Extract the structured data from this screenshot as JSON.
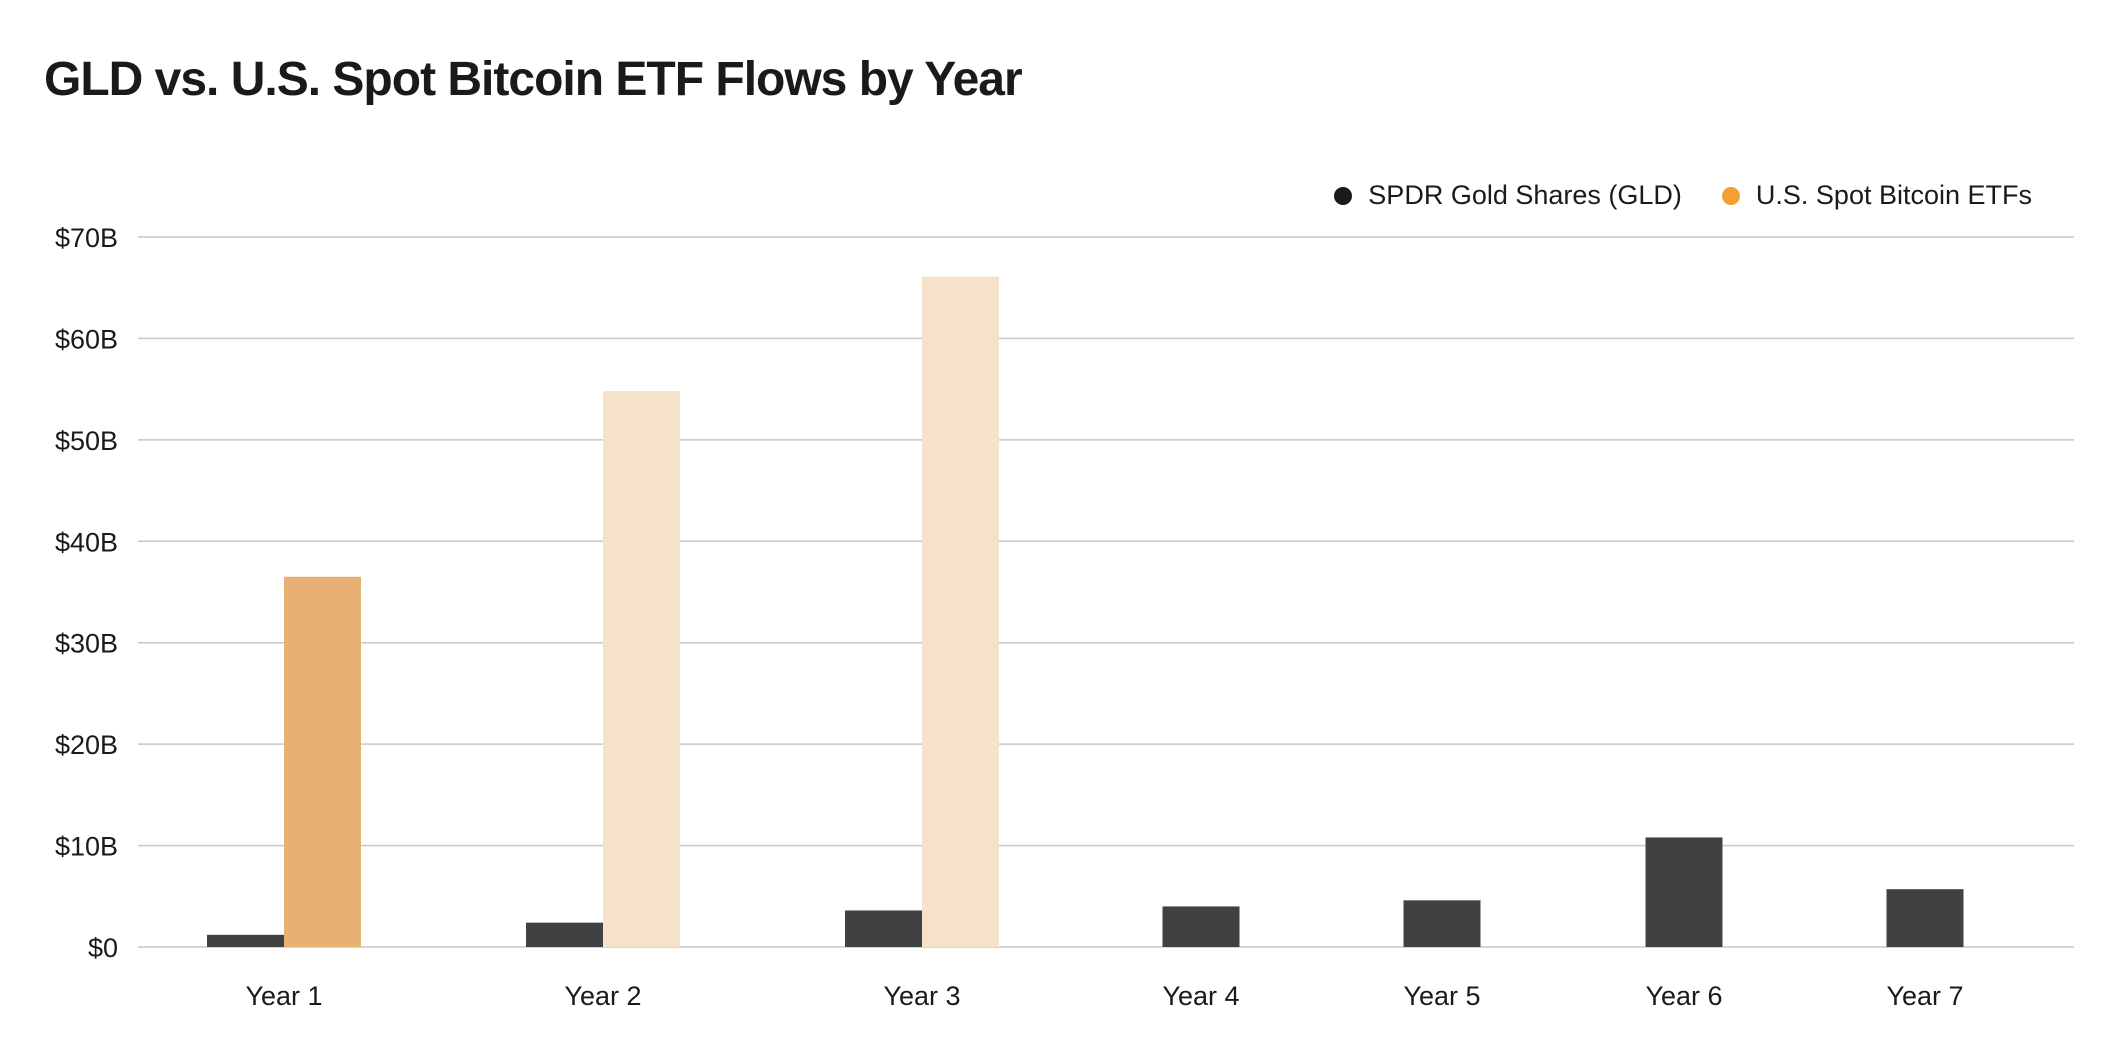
{
  "chart_data": {
    "type": "bar",
    "title": "GLD vs. U.S. Spot Bitcoin ETF Flows by Year",
    "categories": [
      "Year 1",
      "Year 2",
      "Year 3",
      "Year 4",
      "Year 5",
      "Year 6",
      "Year 7"
    ],
    "series": [
      {
        "name": "SPDR Gold Shares (GLD)",
        "values": [
          1.2,
          2.4,
          3.6,
          4.0,
          4.6,
          10.8,
          5.7
        ],
        "color": "#3f4142",
        "dot_color": "#1a1a1a"
      },
      {
        "name": "U.S. Spot Bitcoin ETFs",
        "values": [
          36.5,
          54.8,
          66.1,
          null,
          null,
          null,
          null
        ],
        "color": "#e6b173",
        "dot_color": "#f2a033",
        "highlight_colors": [
          "#e6b173",
          "#f6e2ca",
          "#f6e2ca"
        ]
      }
    ],
    "yticks": [
      "$0",
      "$10B",
      "$20B",
      "$30B",
      "$40B",
      "$50B",
      "$60B",
      "$70B"
    ],
    "ylim": [
      0,
      70
    ],
    "xlabel": "",
    "ylabel": "",
    "grid": true,
    "legend_position": "top-right"
  }
}
